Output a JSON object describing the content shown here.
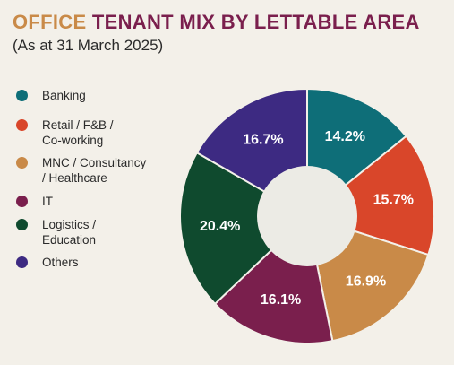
{
  "header": {
    "title_part1": "OFFICE ",
    "title_part2": "TENANT MIX BY LETTABLE AREA",
    "subtitle": "(As at 31 March 2025)"
  },
  "colors": {
    "background": "#f3f0e9",
    "title_accent": "#c98a48",
    "title_main": "#7a1f4d"
  },
  "chart_data": {
    "type": "pie",
    "donut": true,
    "title": "OFFICE TENANT MIX BY LETTABLE AREA",
    "subtitle": "(As at 31 March 2025)",
    "unit": "%",
    "legend_position": "left",
    "start_angle_deg": 0,
    "direction": "clockwise",
    "series": [
      {
        "name": "Banking",
        "value": 14.2,
        "label": "14.2%",
        "color": "#0e6e78"
      },
      {
        "name": "Retail / F&B /\nCo-working",
        "value": 15.7,
        "label": "15.7%",
        "color": "#d9462a"
      },
      {
        "name": "MNC / Consultancy\n/ Healthcare",
        "value": 16.9,
        "label": "16.9%",
        "color": "#c98a48"
      },
      {
        "name": "IT",
        "value": 16.1,
        "label": "16.1%",
        "color": "#7a1f4d"
      },
      {
        "name": "Logistics /\nEducation",
        "value": 20.4,
        "label": "20.4%",
        "color": "#0f4a2e"
      },
      {
        "name": "Others",
        "value": 16.7,
        "label": "16.7%",
        "color": "#3d2a82"
      }
    ]
  }
}
